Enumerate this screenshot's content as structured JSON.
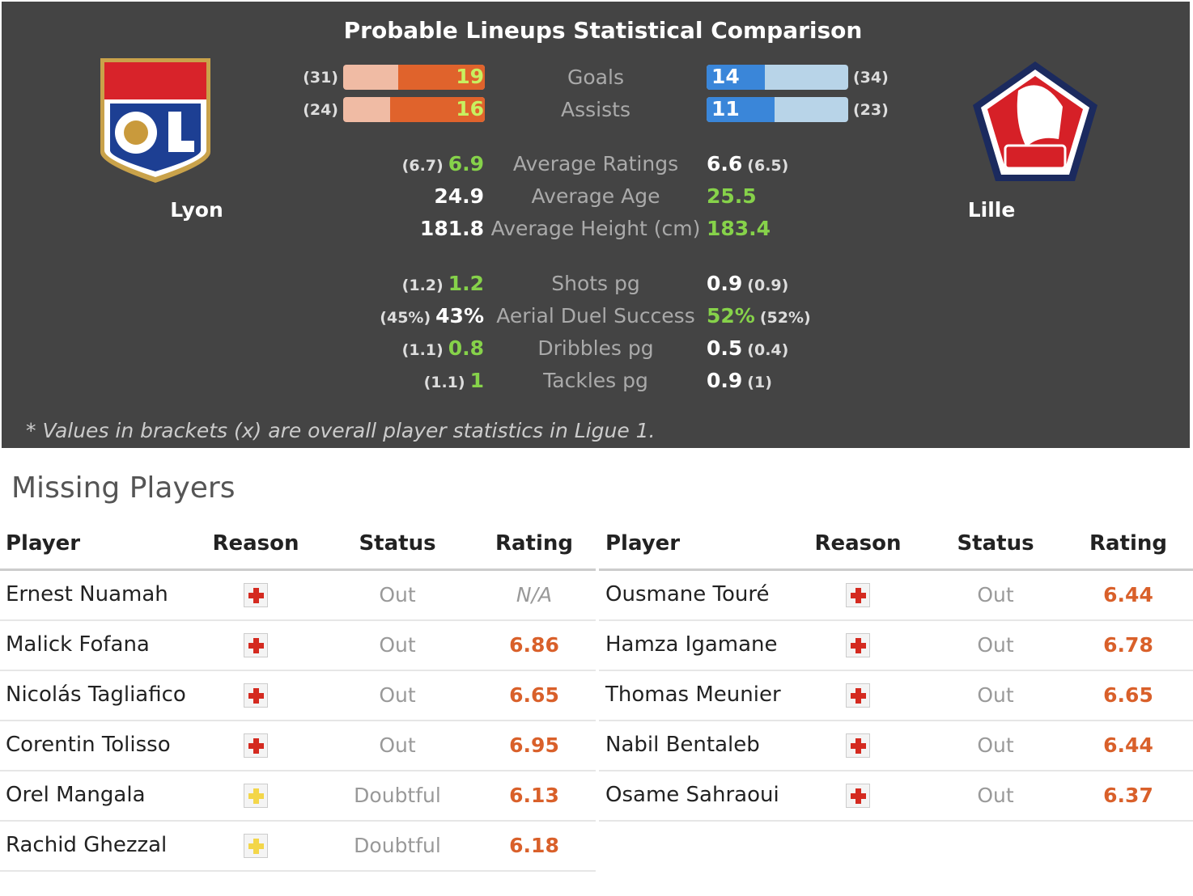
{
  "header": {
    "title": "Probable Lineups Statistical Comparison",
    "home_team": "Lyon",
    "away_team": "Lille"
  },
  "bar_stats": [
    {
      "label": "Goals",
      "home_value": 19,
      "home_overall": "(31)",
      "away_value": 14,
      "away_overall": "(34)",
      "better": "home"
    },
    {
      "label": "Assists",
      "home_value": 16,
      "home_overall": "(24)",
      "away_value": 11,
      "away_overall": "(23)",
      "better": "home"
    }
  ],
  "stats": [
    {
      "label": "Average Ratings",
      "home_value": 6.9,
      "home_overall": "(6.7)",
      "away_value": 6.6,
      "away_overall": "(6.5)",
      "better": "home"
    },
    {
      "label": "Average Age",
      "home_value": 24.9,
      "away_value": 25.5,
      "better": "away"
    },
    {
      "label": "Average Height (cm)",
      "home_value": 181.8,
      "away_value": 183.4,
      "better": "away",
      "gap_after": true
    },
    {
      "label": "Shots pg",
      "home_value": 1.2,
      "home_overall": "(1.2)",
      "away_value": 0.9,
      "away_overall": "(0.9)",
      "better": "home"
    },
    {
      "label": "Aerial Duel Success",
      "home_value": "43%",
      "home_overall": "(45%)",
      "away_value": "52%",
      "away_overall": "(52%)",
      "better": "away"
    },
    {
      "label": "Dribbles pg",
      "home_value": 0.8,
      "home_overall": "(1.1)",
      "away_value": 0.5,
      "away_overall": "(0.4)",
      "better": "home"
    },
    {
      "label": "Tackles pg",
      "home_value": 1,
      "home_overall": "(1.1)",
      "away_value": 0.9,
      "away_overall": "(1)",
      "better": "home"
    }
  ],
  "note": "* Values in brackets (x) are overall player statistics in Ligue 1.",
  "missing": {
    "title": "Missing Players",
    "columns": [
      "Player",
      "Reason",
      "Status",
      "Rating"
    ],
    "home": [
      {
        "player": "Ernest Nuamah",
        "reason_color": "#d42a20",
        "status": "Out",
        "rating": "N/A"
      },
      {
        "player": "Malick Fofana",
        "reason_color": "#d42a20",
        "status": "Out",
        "rating": 6.86
      },
      {
        "player": "Nicolás Tagliafico",
        "reason_color": "#d42a20",
        "status": "Out",
        "rating": 6.65
      },
      {
        "player": "Corentin Tolisso",
        "reason_color": "#d42a20",
        "status": "Out",
        "rating": 6.95
      },
      {
        "player": "Orel Mangala",
        "reason_color": "#f3d64a",
        "status": "Doubtful",
        "rating": 6.13
      },
      {
        "player": "Rachid Ghezzal",
        "reason_color": "#f3d64a",
        "status": "Doubtful",
        "rating": 6.18
      }
    ],
    "away": [
      {
        "player": "Ousmane Touré",
        "reason_color": "#d42a20",
        "status": "Out",
        "rating": 6.44
      },
      {
        "player": "Hamza Igamane",
        "reason_color": "#d42a20",
        "status": "Out",
        "rating": 6.78
      },
      {
        "player": "Thomas Meunier",
        "reason_color": "#d42a20",
        "status": "Out",
        "rating": 6.65
      },
      {
        "player": "Nabil Bentaleb",
        "reason_color": "#d42a20",
        "status": "Out",
        "rating": 6.44
      },
      {
        "player": "Osame Sahraoui",
        "reason_color": "#d42a20",
        "status": "Out",
        "rating": 6.37
      }
    ]
  }
}
